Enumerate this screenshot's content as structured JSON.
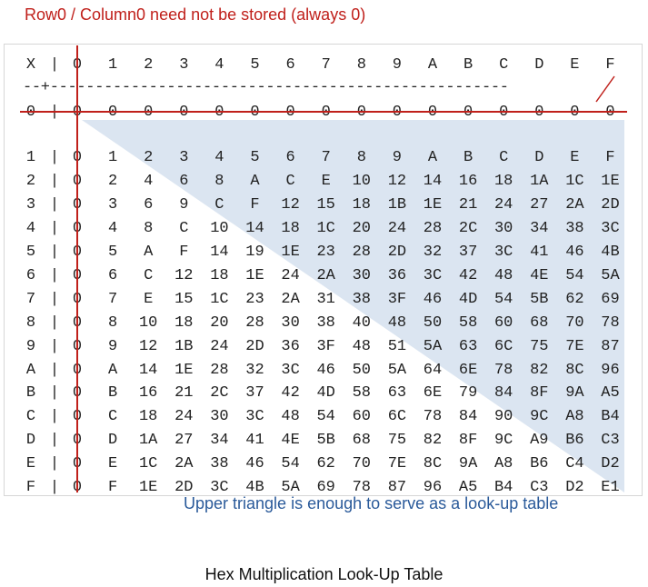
{
  "top_note": "Row0 / Column0 need not be stored (always 0)",
  "bottom_note": "Upper triangle is enough to serve as a look-up table",
  "caption": "Hex Multiplication Look-Up Table",
  "table": {
    "corner": "X",
    "separator_bar": "|",
    "dash_line": "--+---------------------------------------------------",
    "headers": [
      "0",
      "1",
      "2",
      "3",
      "4",
      "5",
      "6",
      "7",
      "8",
      "9",
      "A",
      "B",
      "C",
      "D",
      "E",
      "F"
    ],
    "rows": [
      [
        "0",
        "0",
        "0",
        "0",
        "0",
        "0",
        "0",
        "0",
        "0",
        "0",
        "0",
        "0",
        "0",
        "0",
        "0",
        "0"
      ],
      [
        "0",
        "1",
        "2",
        "3",
        "4",
        "5",
        "6",
        "7",
        "8",
        "9",
        "A",
        "B",
        "C",
        "D",
        "E",
        "F"
      ],
      [
        "0",
        "2",
        "4",
        "6",
        "8",
        "A",
        "C",
        "E",
        "10",
        "12",
        "14",
        "16",
        "18",
        "1A",
        "1C",
        "1E"
      ],
      [
        "0",
        "3",
        "6",
        "9",
        "C",
        "F",
        "12",
        "15",
        "18",
        "1B",
        "1E",
        "21",
        "24",
        "27",
        "2A",
        "2D"
      ],
      [
        "0",
        "4",
        "8",
        "C",
        "10",
        "14",
        "18",
        "1C",
        "20",
        "24",
        "28",
        "2C",
        "30",
        "34",
        "38",
        "3C"
      ],
      [
        "0",
        "5",
        "A",
        "F",
        "14",
        "19",
        "1E",
        "23",
        "28",
        "2D",
        "32",
        "37",
        "3C",
        "41",
        "46",
        "4B"
      ],
      [
        "0",
        "6",
        "C",
        "12",
        "18",
        "1E",
        "24",
        "2A",
        "30",
        "36",
        "3C",
        "42",
        "48",
        "4E",
        "54",
        "5A"
      ],
      [
        "0",
        "7",
        "E",
        "15",
        "1C",
        "23",
        "2A",
        "31",
        "38",
        "3F",
        "46",
        "4D",
        "54",
        "5B",
        "62",
        "69"
      ],
      [
        "0",
        "8",
        "10",
        "18",
        "20",
        "28",
        "30",
        "38",
        "40",
        "48",
        "50",
        "58",
        "60",
        "68",
        "70",
        "78"
      ],
      [
        "0",
        "9",
        "12",
        "1B",
        "24",
        "2D",
        "36",
        "3F",
        "48",
        "51",
        "5A",
        "63",
        "6C",
        "75",
        "7E",
        "87"
      ],
      [
        "0",
        "A",
        "14",
        "1E",
        "28",
        "32",
        "3C",
        "46",
        "50",
        "5A",
        "64",
        "6E",
        "78",
        "82",
        "8C",
        "96"
      ],
      [
        "0",
        "B",
        "16",
        "21",
        "2C",
        "37",
        "42",
        "4D",
        "58",
        "63",
        "6E",
        "79",
        "84",
        "8F",
        "9A",
        "A5"
      ],
      [
        "0",
        "C",
        "18",
        "24",
        "30",
        "3C",
        "48",
        "54",
        "60",
        "6C",
        "78",
        "84",
        "90",
        "9C",
        "A8",
        "B4"
      ],
      [
        "0",
        "D",
        "1A",
        "27",
        "34",
        "41",
        "4E",
        "5B",
        "68",
        "75",
        "82",
        "8F",
        "9C",
        "A9",
        "B6",
        "C3"
      ],
      [
        "0",
        "E",
        "1C",
        "2A",
        "38",
        "46",
        "54",
        "62",
        "70",
        "7E",
        "8C",
        "9A",
        "A8",
        "B6",
        "C4",
        "D2"
      ],
      [
        "0",
        "F",
        "1E",
        "2D",
        "3C",
        "4B",
        "5A",
        "69",
        "78",
        "87",
        "96",
        "A5",
        "B4",
        "C3",
        "D2",
        "E1"
      ]
    ]
  },
  "colors": {
    "red": "#c0201b",
    "triangle_fill": "#dbe5f1",
    "blue_text": "#2a5a9a"
  }
}
